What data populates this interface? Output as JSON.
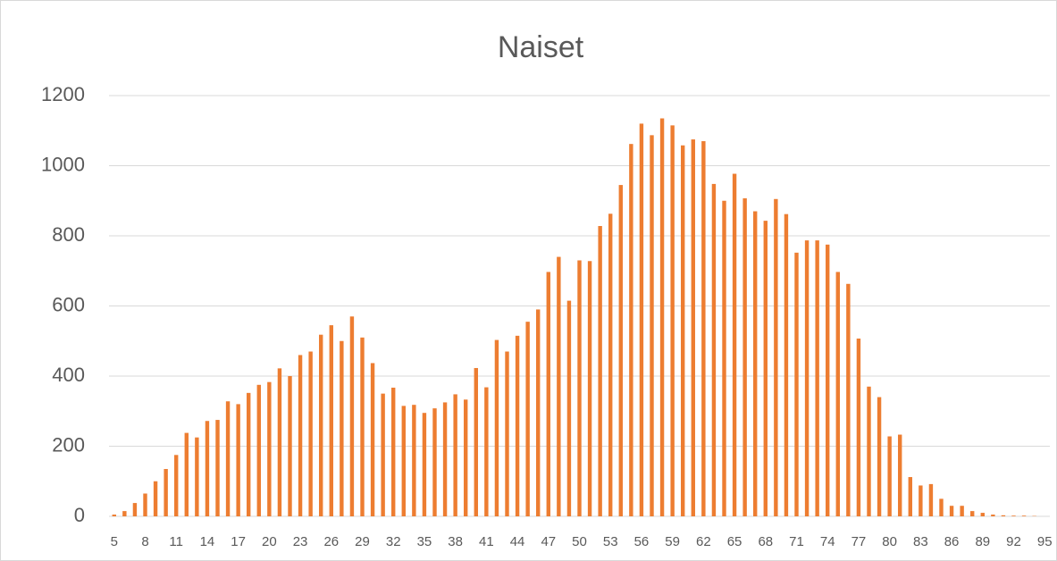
{
  "chart_data": {
    "type": "bar",
    "title": "Naiset",
    "categories": [
      "5",
      null,
      null,
      "8",
      null,
      null,
      "11",
      null,
      null,
      "14",
      null,
      null,
      "17",
      null,
      null,
      "20",
      null,
      null,
      "23",
      null,
      null,
      "26",
      null,
      null,
      "29",
      null,
      null,
      "32",
      null,
      null,
      "35",
      null,
      null,
      "38",
      null,
      null,
      "41",
      null,
      null,
      "44",
      null,
      null,
      "47",
      null,
      null,
      "50",
      null,
      null,
      "53",
      null,
      null,
      "56",
      null,
      null,
      "59",
      null,
      null,
      "62",
      null,
      null,
      "65",
      null,
      null,
      "68",
      null,
      null,
      "71",
      null,
      null,
      "74",
      null,
      null,
      "77",
      null,
      null,
      "80",
      null,
      null,
      "83",
      null,
      null,
      "86",
      null,
      null,
      "89",
      null,
      null,
      "92",
      null,
      null,
      "95"
    ],
    "values": [
      5,
      15,
      38,
      65,
      100,
      135,
      175,
      238,
      225,
      272,
      275,
      328,
      320,
      352,
      375,
      383,
      422,
      400,
      460,
      470,
      518,
      545,
      500,
      570,
      510,
      437,
      350,
      367,
      315,
      318,
      295,
      308,
      325,
      348,
      333,
      423,
      368,
      503,
      470,
      515,
      555,
      590,
      697,
      740,
      615,
      730,
      728,
      828,
      863,
      945,
      1062,
      1120,
      1087,
      1135,
      1115,
      1058,
      1075,
      1070,
      948,
      900,
      977,
      907,
      870,
      843,
      905,
      862,
      752,
      787,
      787,
      775,
      697,
      663,
      507,
      370,
      340,
      228,
      233,
      112,
      88,
      92,
      50,
      30,
      30,
      15,
      10,
      5,
      3,
      2,
      2,
      1,
      0
    ],
    "color": "#ed7d31",
    "ylim": [
      0,
      1200
    ],
    "yticks": [
      0,
      200,
      400,
      600,
      800,
      1000,
      1200
    ],
    "grid": true
  }
}
